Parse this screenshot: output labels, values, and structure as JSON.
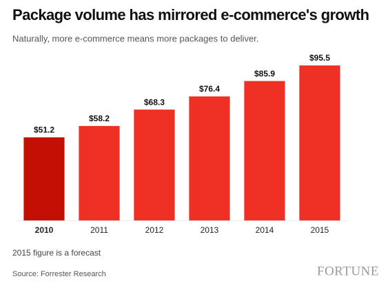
{
  "chart_data": {
    "type": "bar",
    "title": "Package volume has mirrored e-commerce's growth",
    "subtitle": "Naturally, more e-commerce means more packages to deliver.",
    "categories": [
      "2010",
      "2011",
      "2012",
      "2013",
      "2014",
      "2015"
    ],
    "values": [
      51.2,
      58.2,
      68.3,
      76.4,
      85.9,
      95.5
    ],
    "value_labels": [
      "$51.2",
      "$58.2",
      "$68.3",
      "$76.4",
      "$85.9",
      "$95.5"
    ],
    "colors": [
      "#c40f05",
      "#ee3124",
      "#ee3124",
      "#ee3124",
      "#ee3124",
      "#ee3124"
    ],
    "note": "2015 figure is a forecast",
    "source": "Source: Forrester Research",
    "brand": "FORTUNE"
  }
}
